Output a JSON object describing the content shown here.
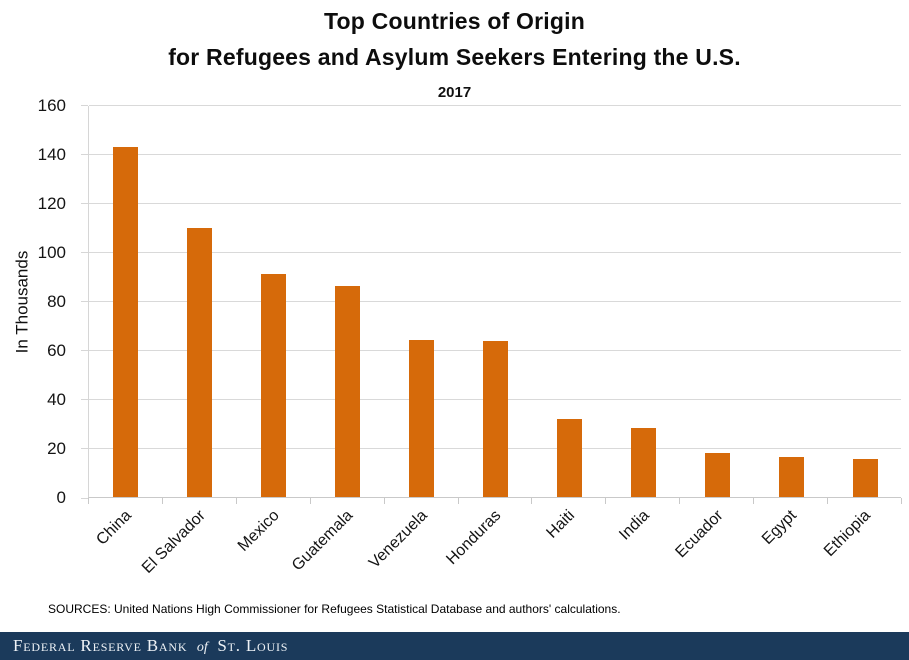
{
  "header": {
    "title_line1": "Top Countries of Origin",
    "title_line2": "for Refugees and Asylum Seekers Entering the U.S.",
    "subtitle": "2017"
  },
  "chart_data": {
    "type": "bar",
    "title": "Top Countries of Origin for Refugees and Asylum Seekers Entering the U.S.",
    "subtitle": "2017",
    "categories": [
      "China",
      "El Salvador",
      "Mexico",
      "Guatemala",
      "Venezuela",
      "Honduras",
      "Haiti",
      "India",
      "Ecuador",
      "Egypt",
      "Ethiopia"
    ],
    "values": [
      143,
      110,
      91,
      86,
      64,
      63.5,
      32,
      28,
      18,
      16.5,
      15.5
    ],
    "xlabel": "",
    "ylabel": "In Thousands",
    "ylim": [
      0,
      160
    ],
    "ytick_step": 20,
    "grid": true,
    "legend": false,
    "bar_color": "#d66a0a",
    "gridline_color": "#d9d9d9"
  },
  "source_note": "SOURCES: United Nations High Commissioner for Refugees Statistical Database and authors' calculations.",
  "footer": {
    "org_part1": "Federal Reserve Bank",
    "org_connector": "of",
    "org_part2": "St. Louis",
    "bg_color": "#1b3a5b"
  }
}
